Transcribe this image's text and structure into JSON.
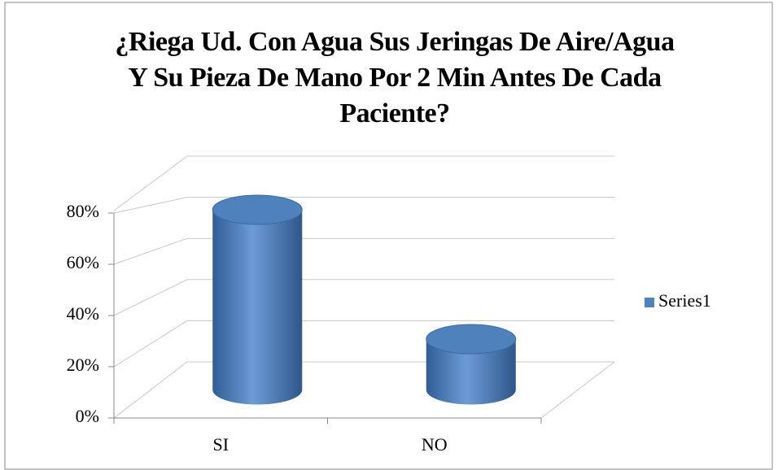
{
  "chart_data": {
    "type": "bar3d",
    "title": "¿Riega Ud. Con Agua Sus Jeringas De Aire/Agua Y Su Pieza De Mano Por 2 Min Antes De Cada Paciente?",
    "categories": [
      "SI",
      "NO"
    ],
    "series": [
      {
        "name": "Series1",
        "color": "#4f81bd",
        "values": [
          78,
          22
        ]
      }
    ],
    "ylim": [
      0,
      100
    ],
    "yticks": [
      {
        "value": 0,
        "label": "0%"
      },
      {
        "value": 20,
        "label": "20%"
      },
      {
        "value": 40,
        "label": "40%"
      },
      {
        "value": 60,
        "label": "60%"
      },
      {
        "value": 80,
        "label": "80%"
      }
    ],
    "grid": true,
    "legend": "right"
  }
}
